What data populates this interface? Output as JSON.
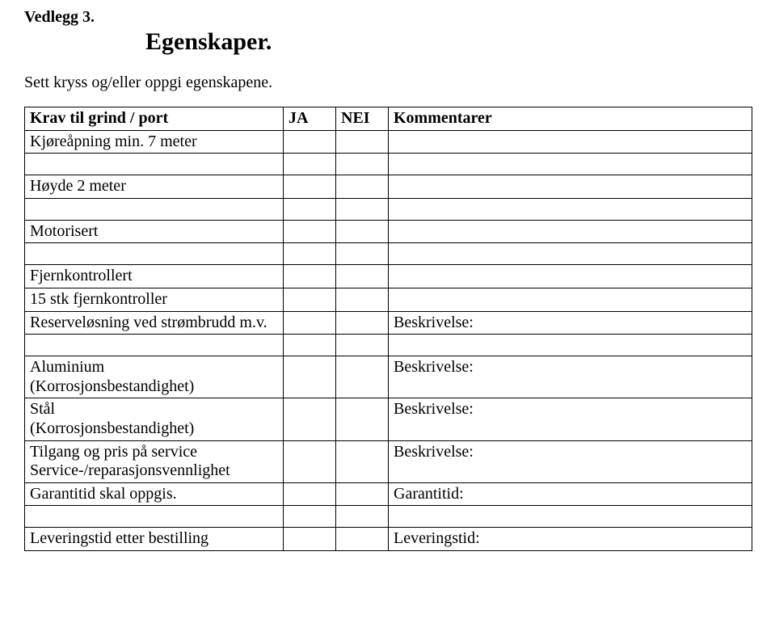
{
  "header": {
    "attachment_label": "Vedlegg 3.",
    "main_title": "Egenskaper.",
    "instruction": "Sett kryss og/eller oppgi egenskapene."
  },
  "table": {
    "header_row": {
      "col1": "Krav til grind / port",
      "col2": "JA",
      "col3": "NEI",
      "col4": "Kommentarer"
    },
    "rows": [
      {
        "c1": "Kjøreåpning min. 7 meter",
        "c4": ""
      },
      {
        "spacer": true
      },
      {
        "c1": "Høyde 2 meter",
        "c4": ""
      },
      {
        "spacer": true
      },
      {
        "c1": "Motorisert",
        "c4": ""
      },
      {
        "spacer": true
      },
      {
        "c1": "Fjernkontrollert",
        "c4": ""
      },
      {
        "c1": "15 stk fjernkontroller",
        "c4": ""
      },
      {
        "c1": "Reserveløsning ved strømbrudd m.v.",
        "c4": "Beskrivelse:"
      },
      {
        "spacer": true
      },
      {
        "c1_line1": "Aluminium",
        "c1_line2": "(Korrosjonsbestandighet)",
        "c4": "Beskrivelse:"
      },
      {
        "c1_line1": "Stål",
        "c1_line2": "(Korrosjonsbestandighet)",
        "c4": "Beskrivelse:"
      },
      {
        "c1_line1": "Tilgang og pris på service",
        "c1_line2": "Service-/reparasjonsvennlighet",
        "c4": "Beskrivelse:"
      },
      {
        "c1": "Garantitid skal oppgis.",
        "c4": "Garantitid:"
      },
      {
        "spacer": true
      },
      {
        "c1": "Leveringstid etter bestilling",
        "c4": "Leveringstid:"
      }
    ]
  }
}
